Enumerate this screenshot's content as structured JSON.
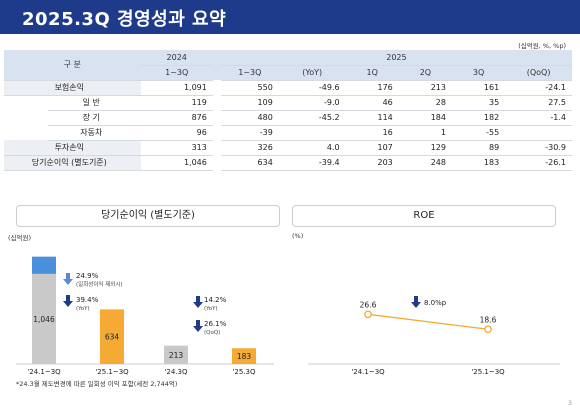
{
  "title": "2025.3Q 경영성과 요약",
  "unit_note": "(십억원, %, %p)",
  "table": {
    "header_label": "구 분",
    "year_2024": "2024",
    "year_2025": "2025",
    "cols_2024": [
      "1~3Q"
    ],
    "cols_2025": [
      "1~3Q",
      "(YoY)",
      "1Q",
      "2Q",
      "3Q",
      "(QoQ)"
    ],
    "rows": [
      {
        "label": "보험손익",
        "values": [
          "1,091",
          "550",
          "-49.6",
          "176",
          "213",
          "161",
          "-24.1"
        ]
      },
      {
        "label": "일 반",
        "values": [
          "119",
          "109",
          "-9.0",
          "46",
          "28",
          "35",
          "27.5"
        ]
      },
      {
        "label": "장 기",
        "values": [
          "876",
          "480",
          "-45.2",
          "114",
          "184",
          "182",
          "-1.4"
        ]
      },
      {
        "label": "자동차",
        "values": [
          "96",
          "-39",
          "",
          "16",
          "1",
          "-55",
          ""
        ]
      },
      {
        "label": "투자손익",
        "values": [
          "313",
          "326",
          "4.0",
          "107",
          "129",
          "89",
          "-30.9"
        ]
      },
      {
        "label": "당기순이익 (별도기준)",
        "values": [
          "1,046",
          "634",
          "-39.4",
          "203",
          "248",
          "183",
          "-26.1"
        ]
      }
    ]
  },
  "left_panel": {
    "title": "당기순이익 (별도기준)",
    "unit": "(십억원)",
    "annotations": {
      "a1_pct": "24.9%",
      "a1_note": "(일회성이익 제외시)",
      "a2_pct": "39.4%",
      "a2_note": "(YoY)",
      "a3_pct": "14.2%",
      "a3_note": "(YoY)",
      "a4_pct": "26.1%",
      "a4_note": "(QoQ)"
    }
  },
  "right_panel": {
    "title": "ROE",
    "unit": "(%)",
    "change_label": "8.0%p"
  },
  "footnote": "*24.3월 제도변경에 따른 일회성 이익 포함(세전 2,744억)",
  "page_number": "3",
  "chart_data": [
    {
      "type": "bar",
      "title": "당기순이익 (별도기준)",
      "ylabel": "(십억원)",
      "categories": [
        "'24.1~3Q",
        "'25.1~3Q",
        "'24.3Q",
        "'25.3Q"
      ],
      "values": [
        1046,
        634,
        213,
        183
      ],
      "extra_segment": {
        "category": "'24.1~3Q",
        "value": 200,
        "color": "#4a8fdb"
      },
      "value_labels": [
        "1,046",
        "634",
        "213",
        "183"
      ],
      "colors": [
        "#c9c9c9",
        "#f4aa33",
        "#c9c9c9",
        "#f4aa33"
      ],
      "ylim": [
        0,
        1300
      ]
    },
    {
      "type": "line",
      "title": "ROE",
      "ylabel": "(%)",
      "categories": [
        "'24.1~3Q",
        "'25.1~3Q"
      ],
      "values": [
        26.6,
        18.6
      ],
      "value_labels": [
        "26.6",
        "18.6"
      ],
      "color": "#f4aa33",
      "ylim": [
        0,
        60
      ]
    }
  ]
}
